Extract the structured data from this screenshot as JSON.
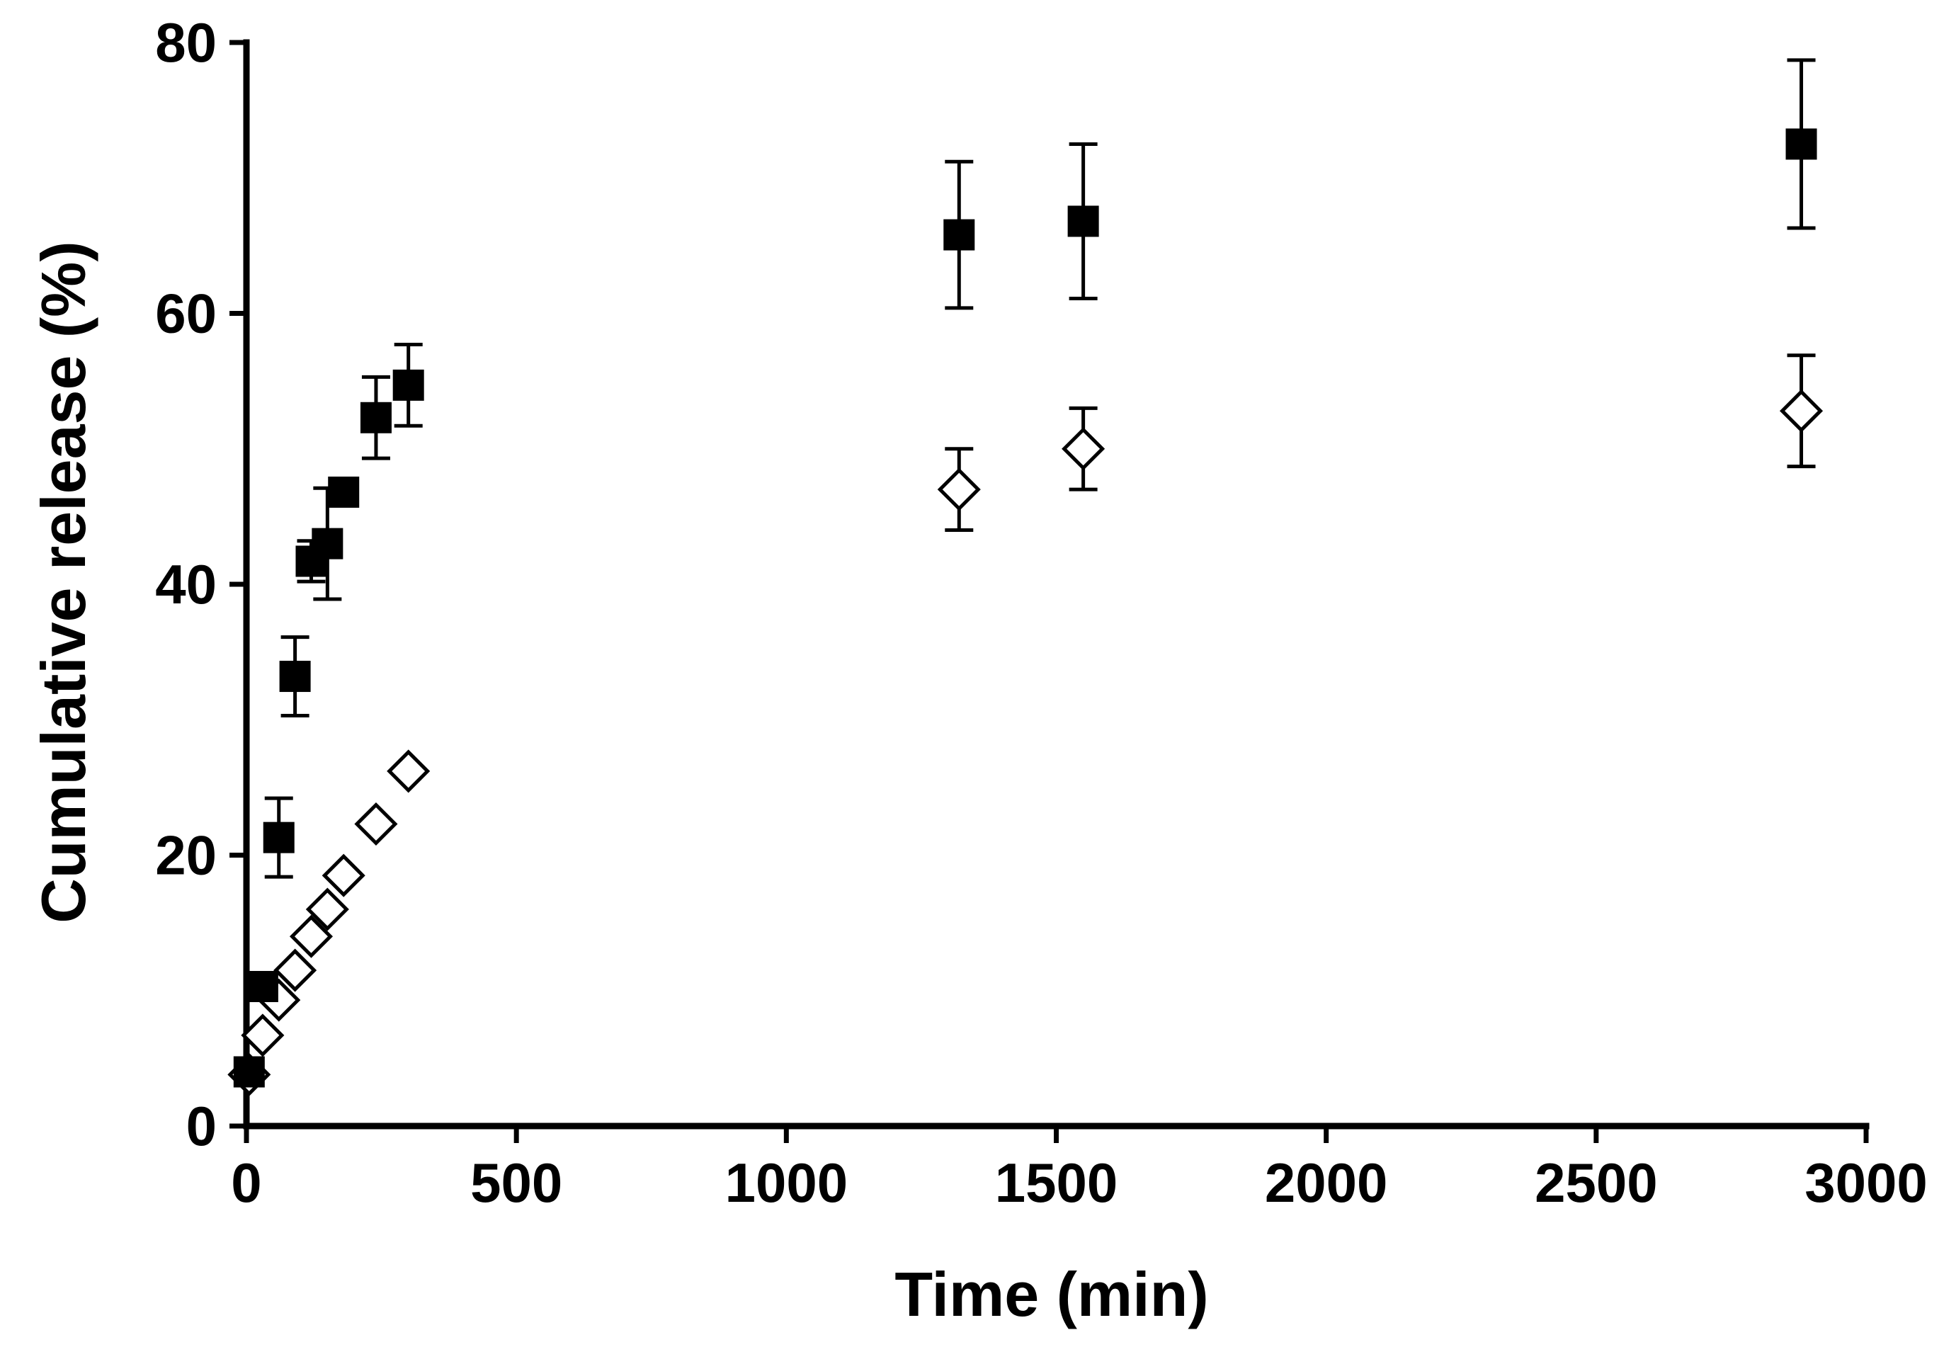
{
  "chart_data": {
    "type": "scatter",
    "title": "",
    "xlabel": "Time (min)",
    "ylabel": "Cumulative release (%)",
    "xlim": [
      0,
      3000
    ],
    "ylim": [
      0,
      80
    ],
    "x_ticks": [
      0,
      500,
      1000,
      1500,
      2000,
      2500,
      3000
    ],
    "y_ticks": [
      0,
      20,
      40,
      60,
      80
    ],
    "x_tick_labels": [
      "0",
      "500",
      "1000",
      "1500",
      "2000",
      "2500",
      "3000"
    ],
    "y_tick_labels": [
      "0",
      "20",
      "40",
      "60",
      "80"
    ],
    "grid": false,
    "legend": "none",
    "series": [
      {
        "name": "filled squares",
        "marker": "square",
        "color": "#000000",
        "x": [
          5,
          30,
          60,
          90,
          120,
          150,
          180,
          240,
          300,
          1320,
          1550,
          2880
        ],
        "y": [
          4.0,
          10.3,
          21.3,
          33.2,
          41.7,
          43.0,
          46.8,
          52.3,
          54.7,
          65.8,
          66.8,
          72.5
        ],
        "error": [
          0,
          0,
          2.9,
          2.9,
          1.5,
          4.1,
          0,
          3.0,
          3.0,
          5.4,
          5.7,
          6.2
        ]
      },
      {
        "name": "open diamonds",
        "marker": "diamond",
        "color": "#ffffff",
        "x": [
          5,
          30,
          60,
          90,
          120,
          150,
          180,
          240,
          300,
          1320,
          1550,
          2880
        ],
        "y": [
          3.8,
          6.7,
          9.3,
          11.5,
          14.0,
          16.0,
          18.5,
          22.3,
          26.2,
          47.0,
          50.0,
          52.8
        ],
        "error": [
          0,
          0,
          0,
          0,
          0,
          0,
          0,
          0,
          0,
          3.0,
          3.0,
          4.1
        ]
      }
    ]
  }
}
